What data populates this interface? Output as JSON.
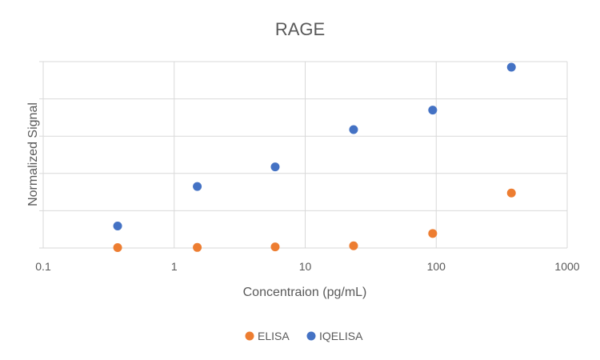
{
  "chart_data": {
    "type": "scatter",
    "title": "RAGE",
    "xlabel": "Concentraion (pg/mL)",
    "ylabel": "Normalized Signal",
    "x_scale": "log",
    "xlim": [
      0.1,
      1000
    ],
    "x_ticks": [
      "0.1",
      "1",
      "10",
      "100",
      "1000"
    ],
    "y_ticks_labeled": false,
    "ylim": [
      0,
      100
    ],
    "grid": true,
    "legend_position": "bottom",
    "series": [
      {
        "name": "ELISA",
        "color": "#ED7D31",
        "points": [
          {
            "x": 0.37,
            "y": 0.2
          },
          {
            "x": 1.5,
            "y": 0.3
          },
          {
            "x": 5.9,
            "y": 0.6
          },
          {
            "x": 23.4,
            "y": 1.2
          },
          {
            "x": 94,
            "y": 7.8
          },
          {
            "x": 375,
            "y": 29.5
          }
        ]
      },
      {
        "name": "IQELISA",
        "color": "#4472C4",
        "points": [
          {
            "x": 0.37,
            "y": 11.8
          },
          {
            "x": 1.5,
            "y": 33.0
          },
          {
            "x": 5.9,
            "y": 43.5
          },
          {
            "x": 23.4,
            "y": 63.5
          },
          {
            "x": 94,
            "y": 74.0
          },
          {
            "x": 375,
            "y": 97.0
          }
        ]
      }
    ]
  }
}
